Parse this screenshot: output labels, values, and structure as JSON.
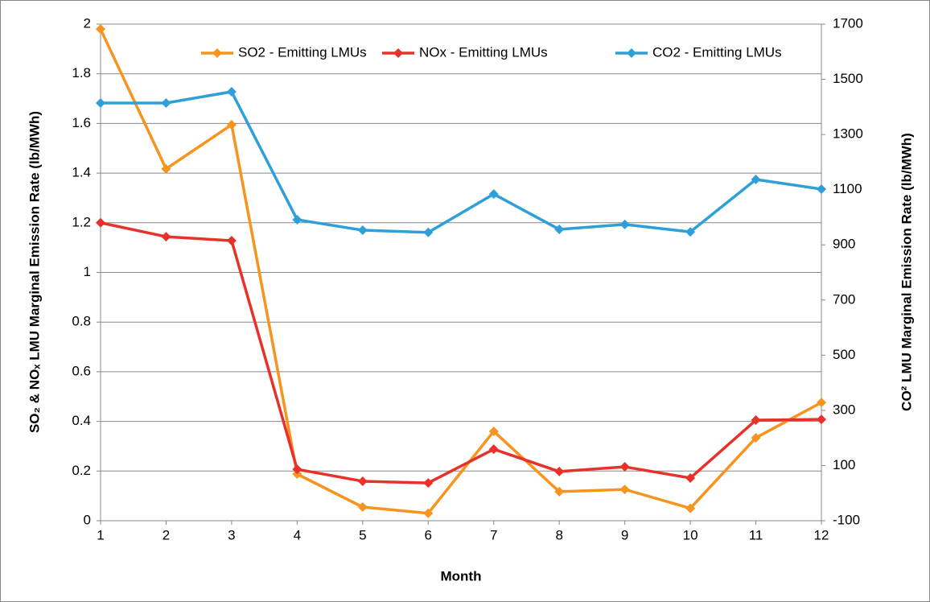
{
  "chart_data": {
    "type": "line",
    "xlabel": "Month",
    "ylabel": "SO₂ & NOₓ LMU Marginal Emission Rate (lb/MWh)",
    "y2label": "CO² LMU Marginal Emission Rate (lb/MWh)",
    "x": [
      1,
      2,
      3,
      4,
      5,
      6,
      7,
      8,
      9,
      10,
      11,
      12
    ],
    "xlim": [
      1,
      12
    ],
    "xticks": [
      1,
      2,
      3,
      4,
      5,
      6,
      7,
      8,
      9,
      10,
      11,
      12
    ],
    "ylim": [
      0,
      2
    ],
    "yticks": [
      0,
      0.2,
      0.4,
      0.6,
      0.8,
      1,
      1.2,
      1.4,
      1.6,
      1.8,
      2
    ],
    "y2lim": [
      -100,
      1700
    ],
    "y2ticks": [
      -100,
      100,
      300,
      500,
      700,
      900,
      1100,
      1300,
      1500,
      1700
    ],
    "grid": true,
    "legend": "top",
    "series": [
      {
        "name": "SO2 - Emitting LMUs",
        "color": "#f7941d",
        "values": [
          1.98,
          1.417,
          1.595,
          0.188,
          0.055,
          0.03,
          0.36,
          0.117,
          0.126,
          0.05,
          0.334,
          0.476
        ]
      },
      {
        "name": "NOx - Emitting LMUs",
        "color": "#e8312a",
        "values": [
          1.2,
          1.144,
          1.128,
          0.207,
          0.159,
          0.152,
          0.288,
          0.198,
          0.217,
          0.172,
          0.405,
          0.408
        ]
      },
      {
        "name": "CO2 - Emitting LMUs",
        "color": "#2e9fd8",
        "axis": "y2",
        "values": [
          1414,
          1414,
          1455,
          991,
          953,
          945,
          1084,
          956,
          974,
          947,
          1137,
          1102
        ]
      }
    ]
  }
}
